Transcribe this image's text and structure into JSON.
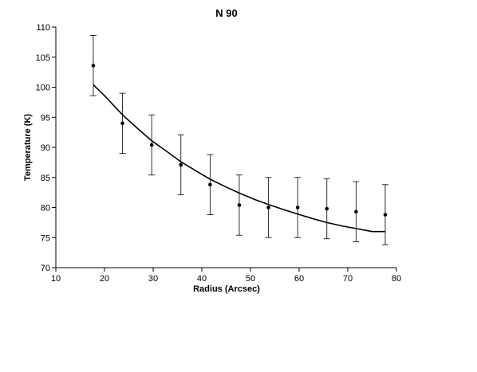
{
  "chart_data": {
    "type": "scatter",
    "title": "N 90",
    "xlabel": "Radius (Arcsec)",
    "ylabel": "Temperature (K)",
    "xlim": [
      10,
      80
    ],
    "ylim": [
      70,
      110
    ],
    "x_ticks": [
      10,
      20,
      30,
      40,
      50,
      60,
      70,
      80
    ],
    "y_ticks": [
      70,
      75,
      80,
      85,
      90,
      95,
      100,
      105,
      110
    ],
    "grid": false,
    "legend": "none",
    "series": [
      {
        "kind": "points-with-error-bars",
        "x": [
          17.7,
          23.7,
          29.7,
          35.7,
          41.7,
          47.7,
          53.7,
          59.7,
          65.7,
          71.7,
          77.7
        ],
        "y": [
          103.6,
          94.0,
          90.4,
          87.1,
          83.8,
          80.4,
          80.0,
          80.0,
          79.8,
          79.3,
          78.8
        ],
        "err": [
          5.0,
          5.0,
          5.0,
          5.0,
          5.0,
          5.0,
          5.0,
          5.0,
          5.0,
          5.0,
          5.0
        ]
      },
      {
        "kind": "fit-line",
        "x": [
          17.7,
          20,
          23.7,
          27,
          29.7,
          33,
          35.7,
          39,
          41.7,
          45,
          47.7,
          51,
          53.7,
          57,
          59.7,
          63,
          65.7,
          69,
          71.7,
          75,
          77.7
        ],
        "y": [
          100.4,
          98.6,
          95.4,
          93.0,
          91.1,
          89.2,
          87.6,
          86.0,
          84.7,
          83.4,
          82.4,
          81.3,
          80.5,
          79.6,
          78.9,
          78.1,
          77.5,
          76.9,
          76.5,
          76.0,
          76.0
        ]
      }
    ],
    "colors": {
      "axis": "#000000",
      "points": "#000000",
      "error_bars": "#000000",
      "fit_line": "#000000"
    }
  }
}
